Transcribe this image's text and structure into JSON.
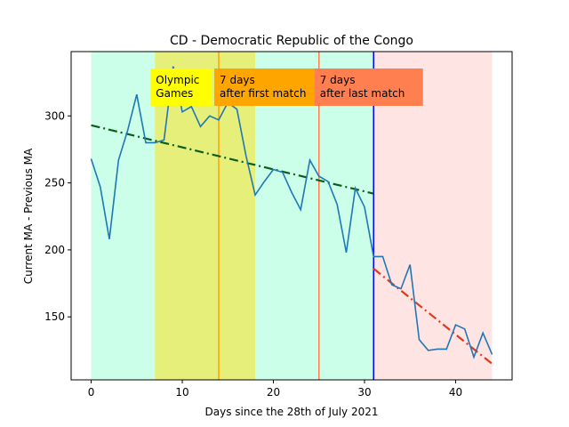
{
  "chart_data": {
    "type": "line",
    "title": "CD - Democratic Republic of the Congo",
    "xlabel": "Days since the 28th of July 2021",
    "ylabel": "Current MA - Previous MA",
    "xlim": [
      -2.2,
      46.2
    ],
    "ylim": [
      103,
      348
    ],
    "x_ticks": [
      0,
      10,
      20,
      30,
      40
    ],
    "y_ticks": [
      150,
      200,
      250,
      300
    ],
    "grid": false,
    "regions": [
      {
        "name": "before",
        "x0": 0,
        "x1": 31,
        "color": "#ccffe9"
      },
      {
        "name": "olympic-games",
        "x0": 7,
        "x1": 18,
        "color": "#e6ef7a"
      },
      {
        "name": "after",
        "x0": 31,
        "x1": 44,
        "color": "#ffe4e4"
      }
    ],
    "vlines": [
      {
        "name": "first-match-7-days",
        "x": 14,
        "color": "#ffa500"
      },
      {
        "name": "last-match-7-days",
        "x": 25,
        "color": "#ff7f50"
      },
      {
        "name": "split",
        "x": 31,
        "color": "#0000ff"
      }
    ],
    "annotations": [
      {
        "name": "olympic-games",
        "text": [
          "Olympic",
          "Games"
        ],
        "x": 7,
        "y": 310,
        "bg": "#ffff00"
      },
      {
        "name": "first-match",
        "text": [
          "7 days",
          "after first match"
        ],
        "x": 14,
        "y": 310,
        "bg": "#ffa500"
      },
      {
        "name": "last-match",
        "text": [
          "7 days",
          "after last match"
        ],
        "x": 25,
        "y": 310,
        "bg": "#ff7f50"
      }
    ],
    "series": [
      {
        "color": "#1f77b4",
        "x": [
          0,
          1,
          2,
          3,
          4,
          5,
          6,
          7,
          8,
          9,
          10,
          11,
          12,
          13,
          14,
          15,
          16,
          17,
          18,
          19,
          20,
          21,
          22,
          23,
          24,
          25,
          26,
          27,
          28,
          29,
          30,
          31,
          32,
          33,
          34,
          35,
          36,
          37,
          38,
          39,
          40,
          41,
          42,
          43,
          44
        ],
        "y": [
          268,
          247,
          208,
          267,
          289,
          316,
          280,
          280,
          282,
          337,
          303,
          307,
          292,
          300,
          297,
          310,
          305,
          270,
          241,
          251,
          260,
          258,
          243,
          230,
          267,
          255,
          251,
          234,
          198,
          246,
          232,
          195,
          195,
          174,
          171,
          189,
          133,
          125,
          126,
          126,
          144,
          141,
          120,
          138,
          122
        ]
      }
    ],
    "trendlines": [
      {
        "name": "trend-before",
        "x": [
          0,
          31
        ],
        "y": [
          293,
          242
        ],
        "color": "#0b5e1a"
      },
      {
        "name": "trend-after",
        "x": [
          31,
          44
        ],
        "y": [
          186,
          115
        ],
        "color": "#dd3a1c"
      }
    ]
  }
}
